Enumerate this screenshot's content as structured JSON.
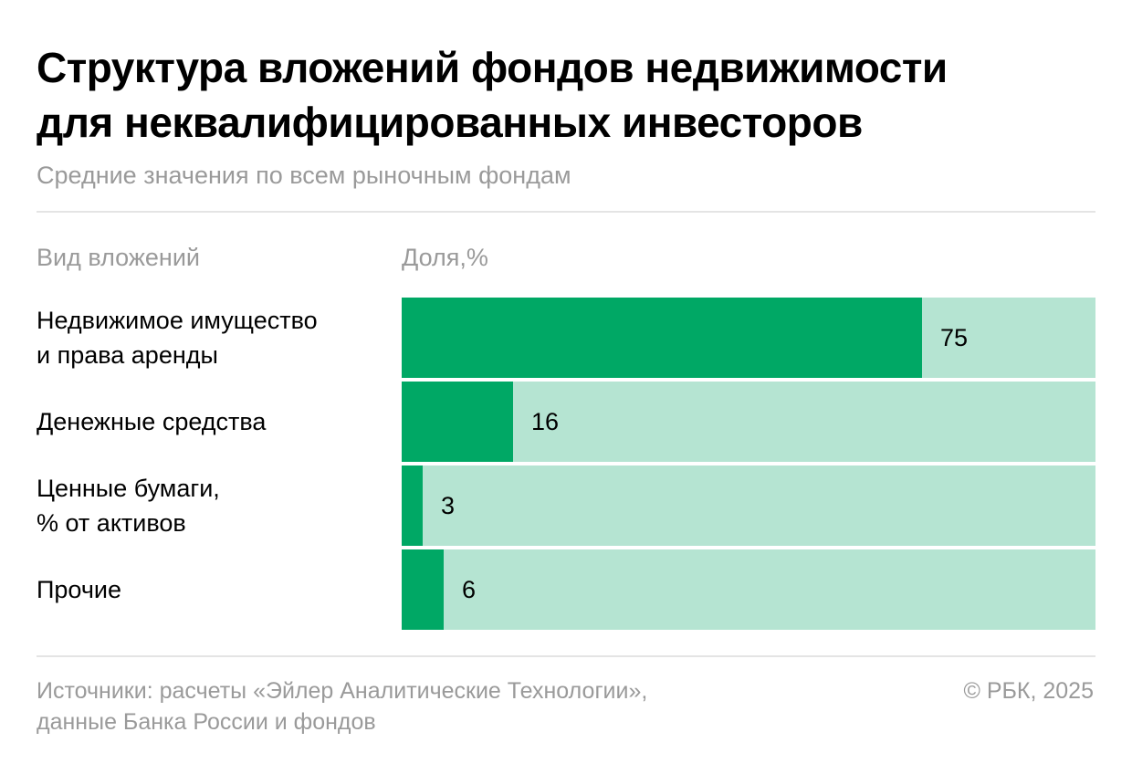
{
  "title": {
    "line1": "Структура вложений фондов недвижимости",
    "line2": "для неквалифицированных инвесторов"
  },
  "subtitle": "Средние значения по всем рыночным фондам",
  "headers": {
    "category": "Вид вложений",
    "value": "Доля,%"
  },
  "chart_data": {
    "type": "bar",
    "orientation": "horizontal",
    "title": "Структура вложений фондов недвижимости для неквалифицированных инвесторов",
    "subtitle": "Средние значения по всем рыночным фондам",
    "xlabel": "Доля,%",
    "ylabel": "Вид вложений",
    "xlim": [
      0,
      100
    ],
    "categories": [
      [
        "Недвижимое имущество",
        "и права аренды"
      ],
      [
        "Денежные средства"
      ],
      [
        "Ценные бумаги,",
        "% от активов"
      ],
      [
        "Прочие"
      ]
    ],
    "values": [
      75,
      16,
      3,
      6
    ],
    "data_labels": [
      "75",
      "16",
      "3",
      "6"
    ],
    "grid": false,
    "legend": "none",
    "colors": {
      "bar": "#00a865",
      "track": "#b5e4d2"
    }
  },
  "footer": {
    "source_line1": "Источники: расчеты «Эйлер Аналитические Технологии»,",
    "source_line2": "данные Банка России и фондов",
    "copyright": "© РБК, 2025"
  }
}
